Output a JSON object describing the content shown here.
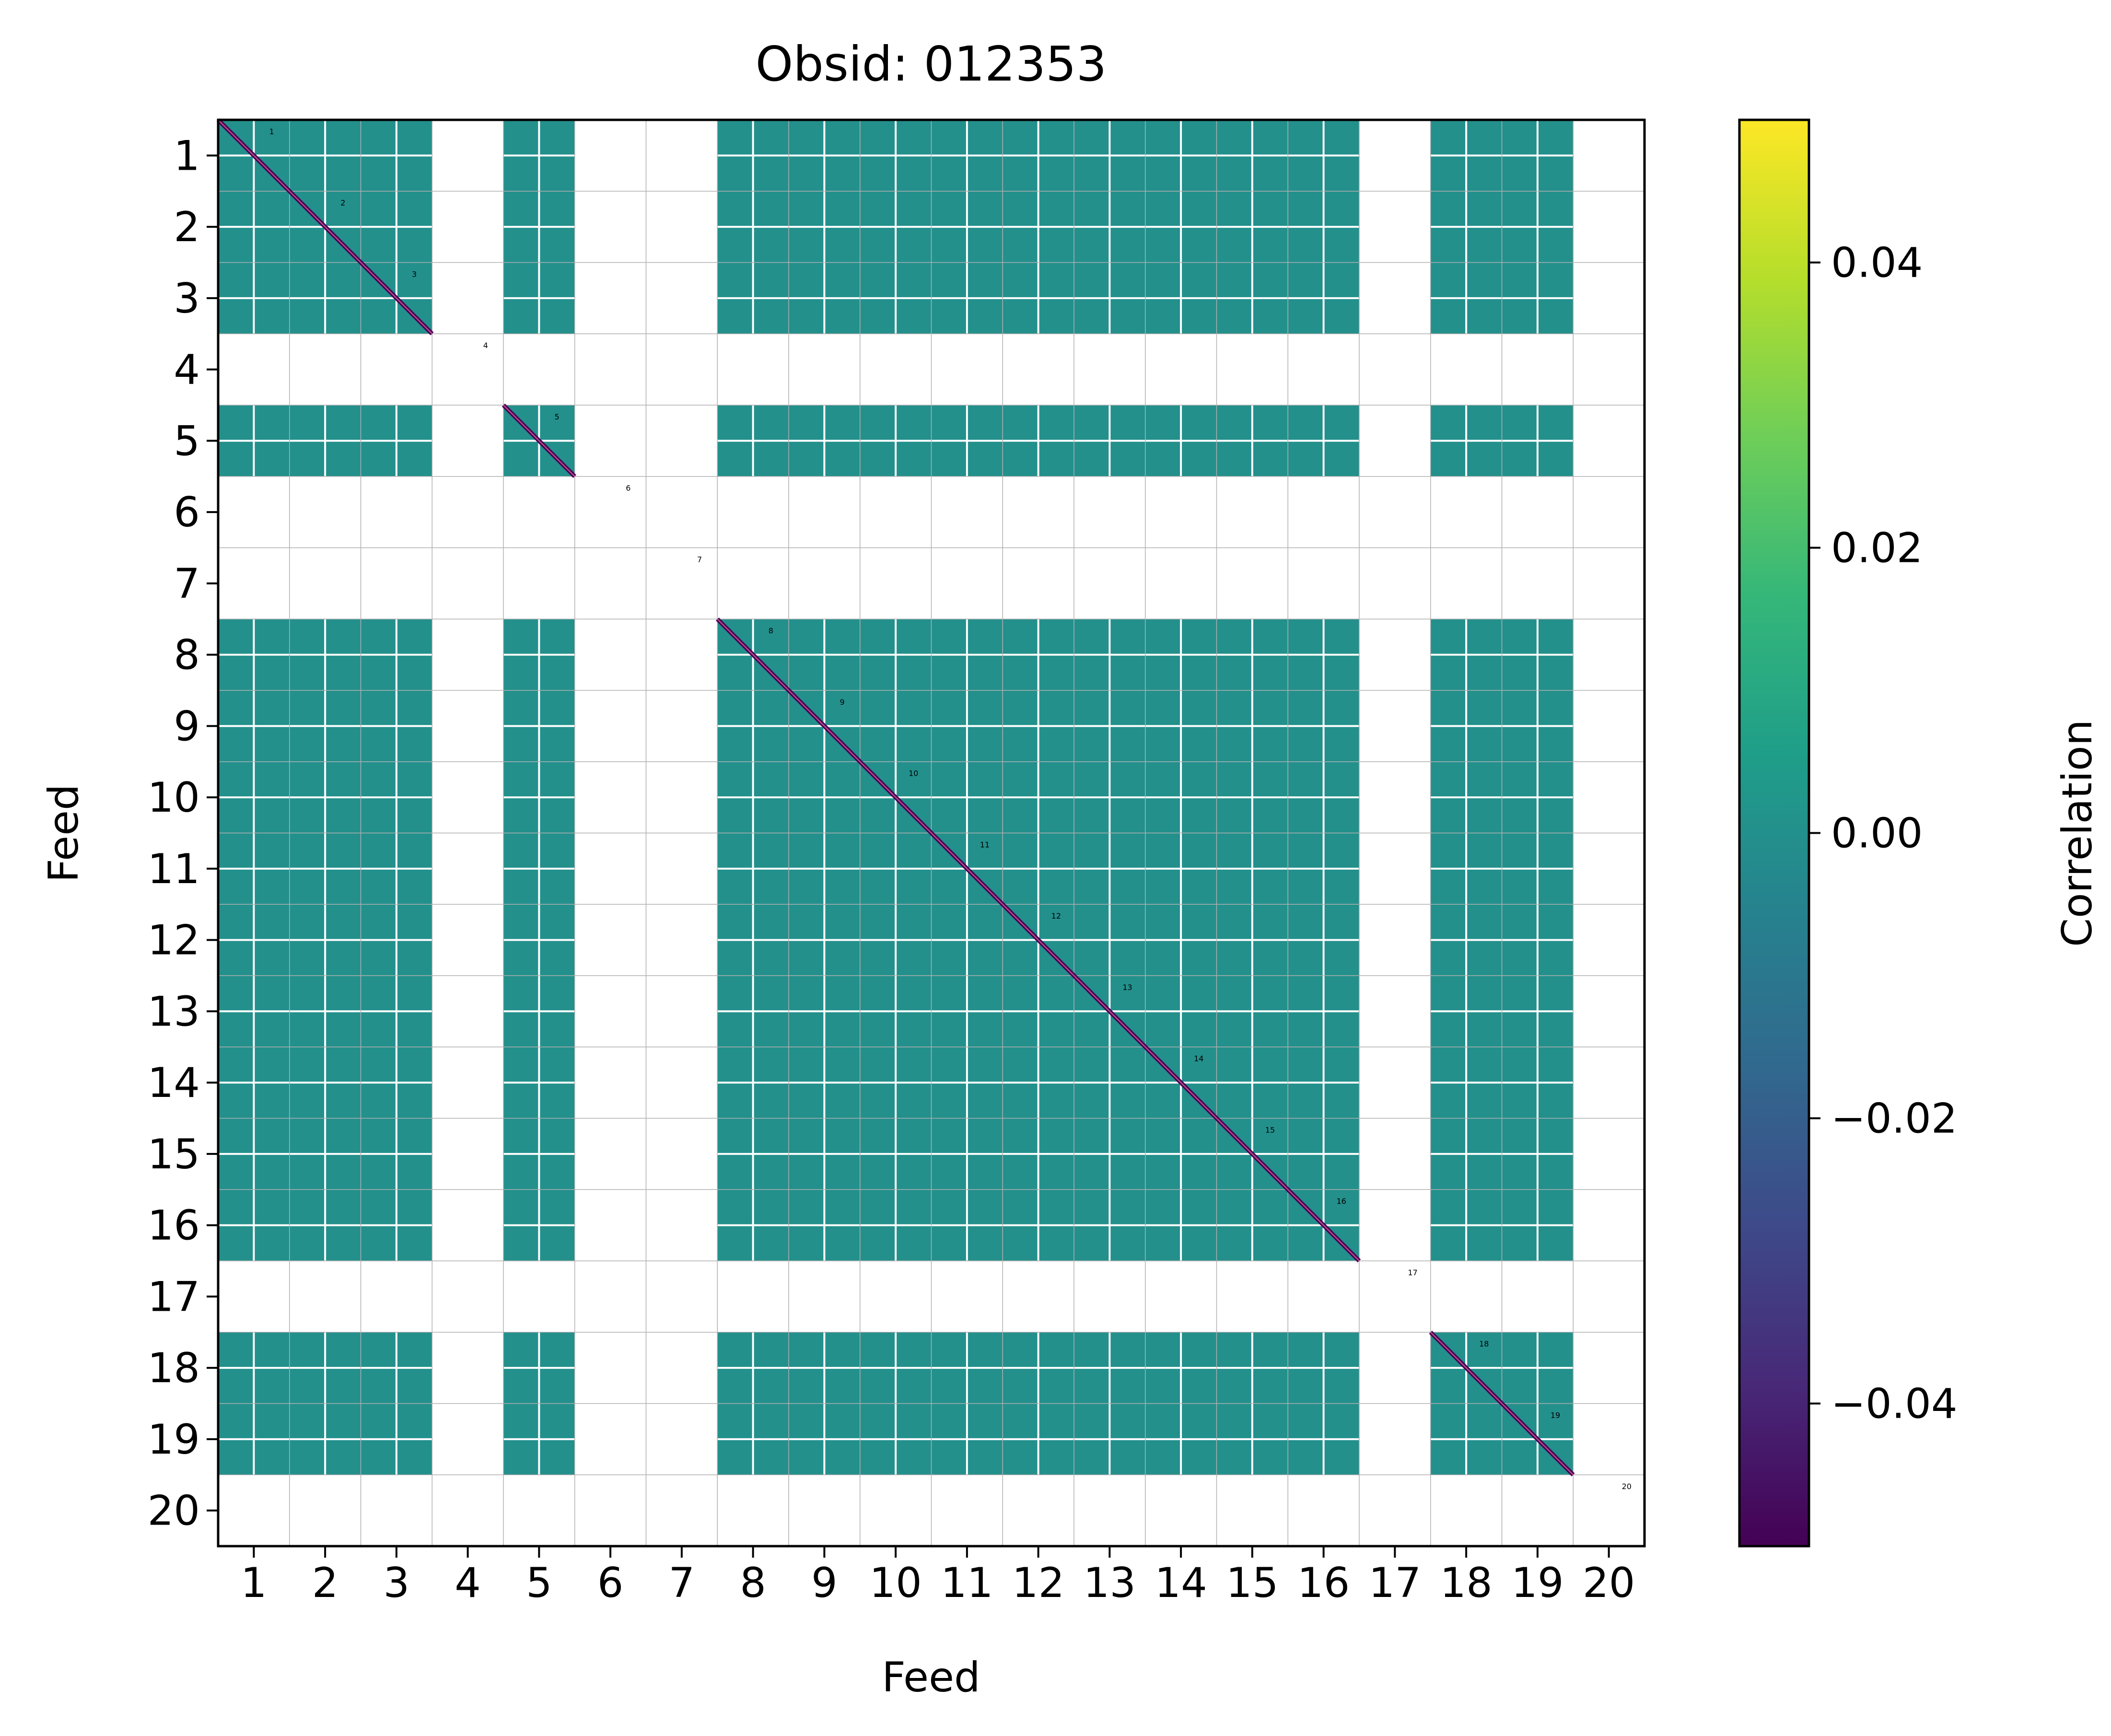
{
  "chart_data": {
    "type": "heatmap",
    "title": "Obsid: 012353",
    "xlabel": "Feed",
    "ylabel": "Feed",
    "categories": [
      "1",
      "2",
      "3",
      "4",
      "5",
      "6",
      "7",
      "8",
      "9",
      "10",
      "11",
      "12",
      "13",
      "14",
      "15",
      "16",
      "17",
      "18",
      "19",
      "20"
    ],
    "active_feeds": [
      "1",
      "2",
      "3",
      "5",
      "8",
      "9",
      "10",
      "11",
      "12",
      "13",
      "14",
      "15",
      "16",
      "18",
      "19"
    ],
    "fill_value": 0.0,
    "diagonal_value": -0.05,
    "diagonal_labels": [
      "1",
      "2",
      "3",
      "4",
      "5",
      "6",
      "7",
      "8",
      "9",
      "10",
      "11",
      "12",
      "13",
      "14",
      "15",
      "16",
      "17",
      "18",
      "19",
      "20"
    ],
    "colorbar": {
      "label": "Correlation",
      "vmin": -0.05,
      "vmax": 0.05,
      "ticks": [
        -0.04,
        -0.02,
        0.0,
        0.02,
        0.04
      ],
      "tick_labels": [
        "−0.04",
        "−0.02",
        "0.00",
        "0.02",
        "0.04"
      ],
      "colormap": "viridis",
      "colormap_stops": [
        "#440154",
        "#482878",
        "#3e4989",
        "#31688e",
        "#26828e",
        "#1f9e89",
        "#35b779",
        "#6ece58",
        "#b5de2b",
        "#fde725"
      ]
    },
    "grid": true,
    "legend": "none"
  }
}
